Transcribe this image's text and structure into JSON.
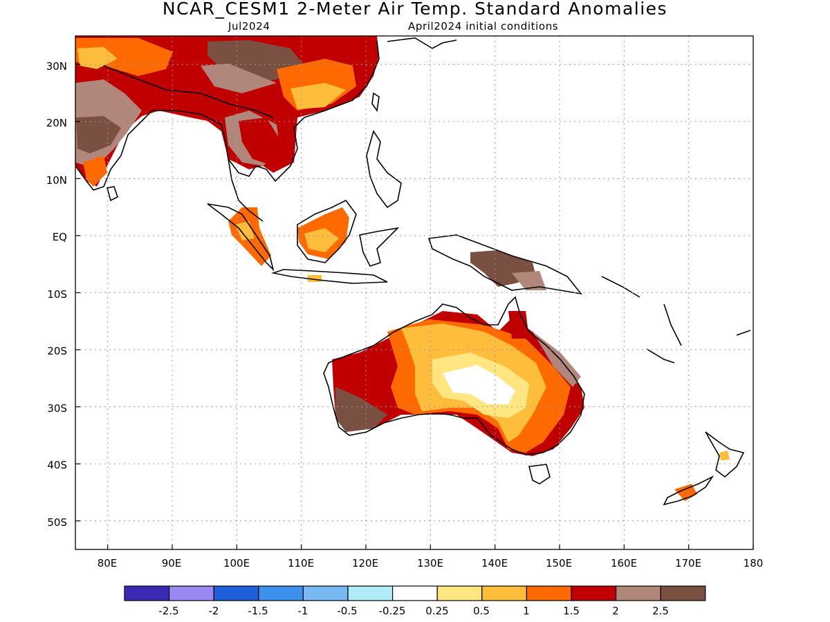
{
  "header": {
    "title": "NCAR_CESM1 2-Meter Air Temp. Standard Anomalies",
    "target_month": "Jul2024",
    "initial_conditions": "April2024 initial conditions"
  },
  "map": {
    "lon_range": [
      75,
      180
    ],
    "lat_range": [
      -55,
      35
    ],
    "lon_ticks": [
      "80E",
      "90E",
      "100E",
      "110E",
      "120E",
      "130E",
      "140E",
      "150E",
      "160E",
      "170E",
      "180"
    ],
    "lat_ticks": [
      "30N",
      "20N",
      "10N",
      "EQ",
      "10S",
      "20S",
      "30S",
      "40S",
      "50S"
    ],
    "grid": "dotted",
    "regions": [
      {
        "name": "India northwest",
        "category": "2.5"
      },
      {
        "name": "India central",
        "category": "2.5"
      },
      {
        "name": "India south",
        "category": "1.5"
      },
      {
        "name": "Tibetan plateau",
        "category": "2.5"
      },
      {
        "name": "South China",
        "category": "1.5"
      },
      {
        "name": "Indochina",
        "category": "2"
      },
      {
        "name": "Borneo",
        "category": "1"
      },
      {
        "name": "Sumatra",
        "category": "1"
      },
      {
        "name": "New Guinea",
        "category": "2.5"
      },
      {
        "name": "Western Australia",
        "category": "2"
      },
      {
        "name": "Southwest Australia",
        "category": "2.5"
      },
      {
        "name": "Central Australia",
        "category": "0.25"
      },
      {
        "name": "Eastern Australia",
        "category": "2"
      },
      {
        "name": "Cape York",
        "category": "2"
      },
      {
        "name": "South Island NZ",
        "category": "1.5"
      }
    ]
  },
  "legend": {
    "colors": [
      "#3b2ab3",
      "#9a89f3",
      "#1e5fdc",
      "#3c91ee",
      "#78b8f5",
      "#b0ecf8",
      "#ffffff",
      "#ffe680",
      "#ffbd3c",
      "#ff6a00",
      "#c00000",
      "#b0877a",
      "#7a5043"
    ],
    "labels": [
      "-2.5",
      "-2",
      "-1.5",
      "-1",
      "-0.5",
      "-0.25",
      "0.25",
      "0.5",
      "1",
      "1.5",
      "2",
      "2.5"
    ]
  }
}
